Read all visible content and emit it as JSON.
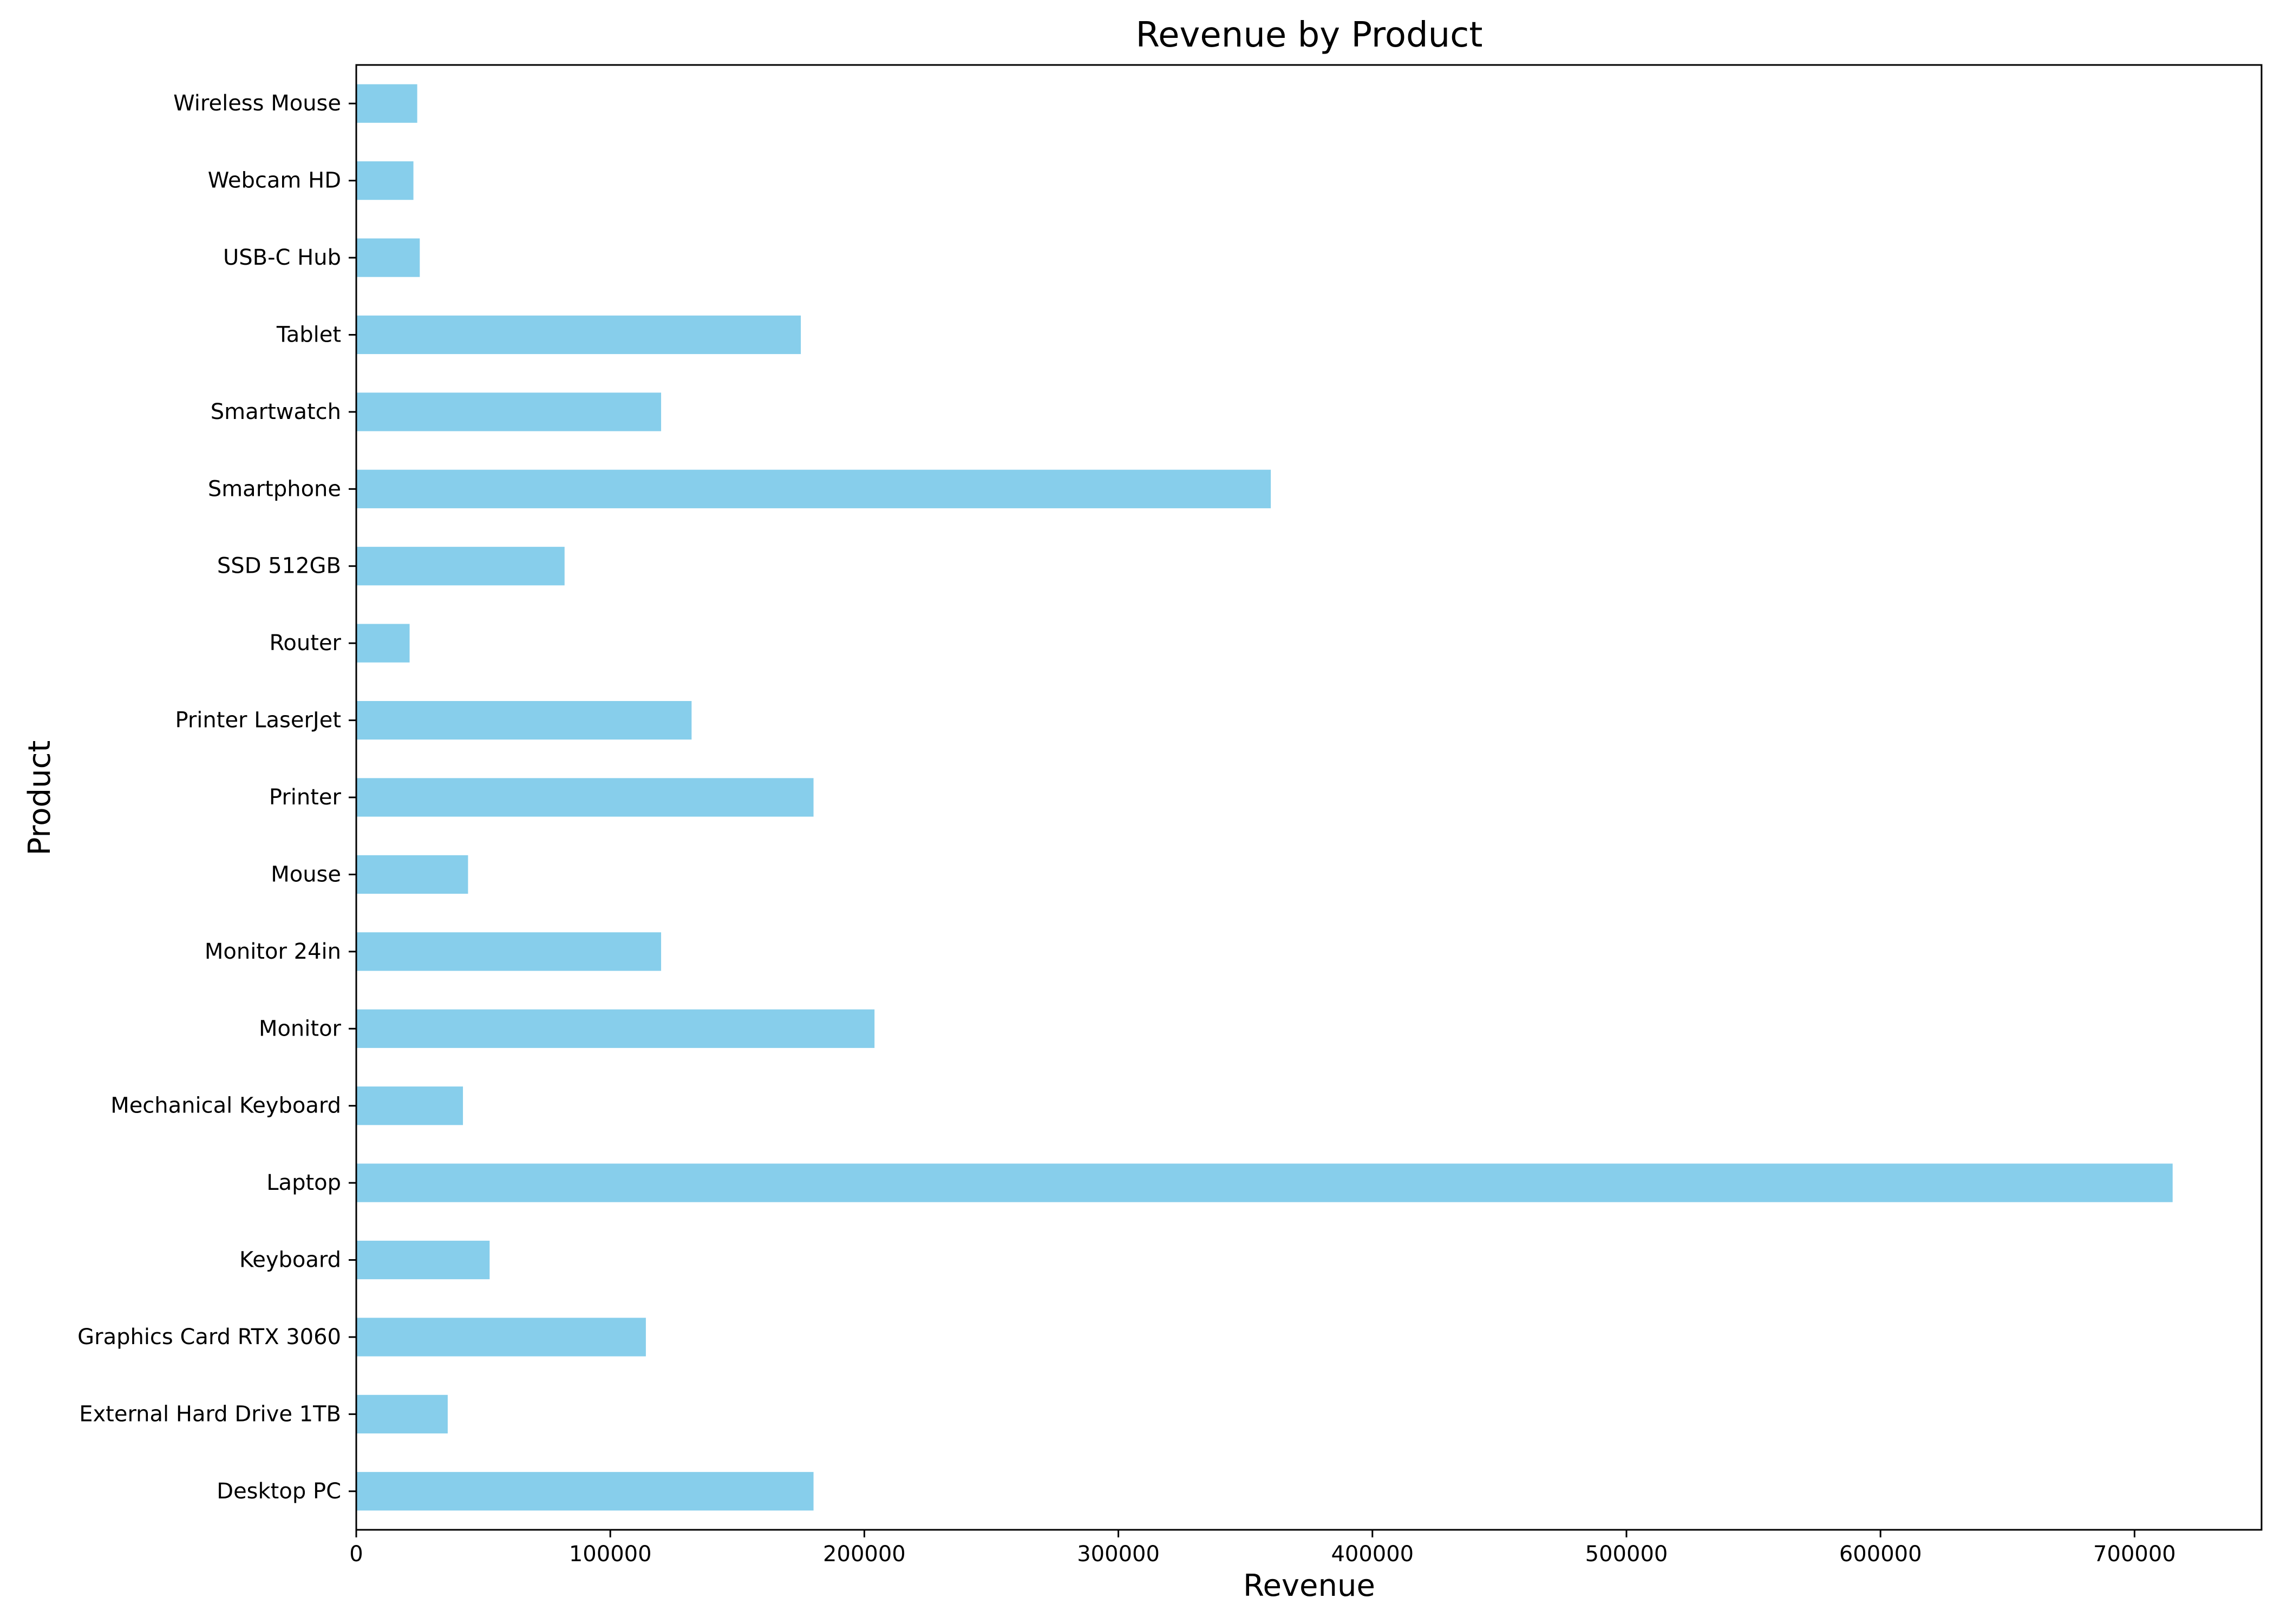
{
  "chart_data": {
    "type": "bar",
    "orientation": "horizontal",
    "title": "Revenue by Product",
    "xlabel": "Revenue",
    "ylabel": "Product",
    "xlim": [
      0,
      750000
    ],
    "xticks": [
      0,
      100000,
      200000,
      300000,
      400000,
      500000,
      600000,
      700000
    ],
    "xtick_labels": [
      "0",
      "100000",
      "200000",
      "300000",
      "400000",
      "500000",
      "600000",
      "700000"
    ],
    "grid": false,
    "bar_color": "#87CEEB",
    "categories": [
      "Desktop PC",
      "External Hard Drive 1TB",
      "Graphics Card RTX 3060",
      "Keyboard",
      "Laptop",
      "Mechanical Keyboard",
      "Monitor",
      "Monitor 24in",
      "Mouse",
      "Printer",
      "Printer LaserJet",
      "Router",
      "SSD 512GB",
      "Smartphone",
      "Smartwatch",
      "Tablet",
      "USB-C Hub",
      "Webcam HD",
      "Wireless Mouse"
    ],
    "values": [
      180000,
      36000,
      114000,
      52500,
      715000,
      42000,
      204000,
      120000,
      44000,
      180000,
      132000,
      21000,
      82000,
      360000,
      120000,
      175000,
      25000,
      22500,
      24000
    ]
  }
}
